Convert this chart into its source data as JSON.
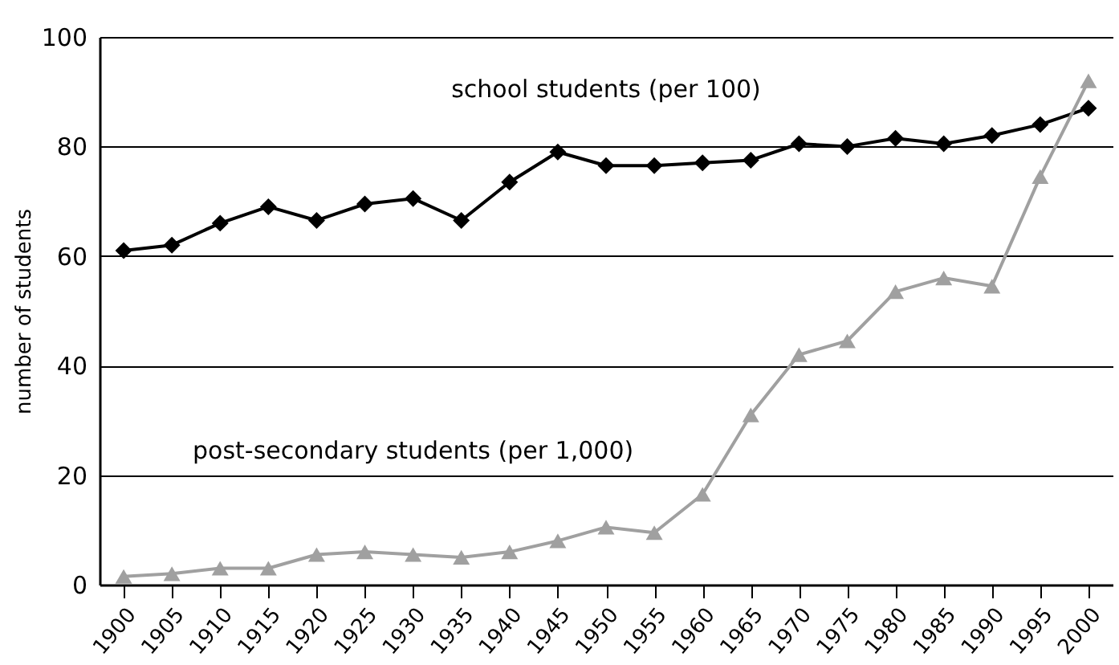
{
  "chart_data": {
    "type": "line",
    "ylabel": "number of students",
    "categories": [
      "1900",
      "1905",
      "1910",
      "1915",
      "1920",
      "1925",
      "1930",
      "1935",
      "1940",
      "1945",
      "1950",
      "1955",
      "1960",
      "1965",
      "1970",
      "1975",
      "1980",
      "1985",
      "1990",
      "1995",
      "2000"
    ],
    "series": [
      {
        "name": "school students (per 100)",
        "color": "#000000",
        "marker": "diamond",
        "values": [
          61,
          62,
          66,
          69,
          66.5,
          69.5,
          70.5,
          66.5,
          73.5,
          79,
          76.5,
          76.5,
          77,
          77.5,
          80.5,
          80,
          81.5,
          80.5,
          82,
          84,
          87
        ]
      },
      {
        "name": "post-secondary students (per 1,000)",
        "color": "#a0a0a0",
        "marker": "triangle",
        "values": [
          1.5,
          2,
          3,
          3,
          5.5,
          6,
          5.5,
          5,
          6,
          8,
          10.5,
          9.5,
          16.5,
          31,
          42,
          44.5,
          53.5,
          56,
          54.5,
          74.5,
          92
        ]
      }
    ],
    "ylim": [
      0,
      100
    ],
    "yticks": [
      0,
      20,
      40,
      60,
      80,
      100
    ],
    "grid": "y",
    "line_style": "solid"
  }
}
